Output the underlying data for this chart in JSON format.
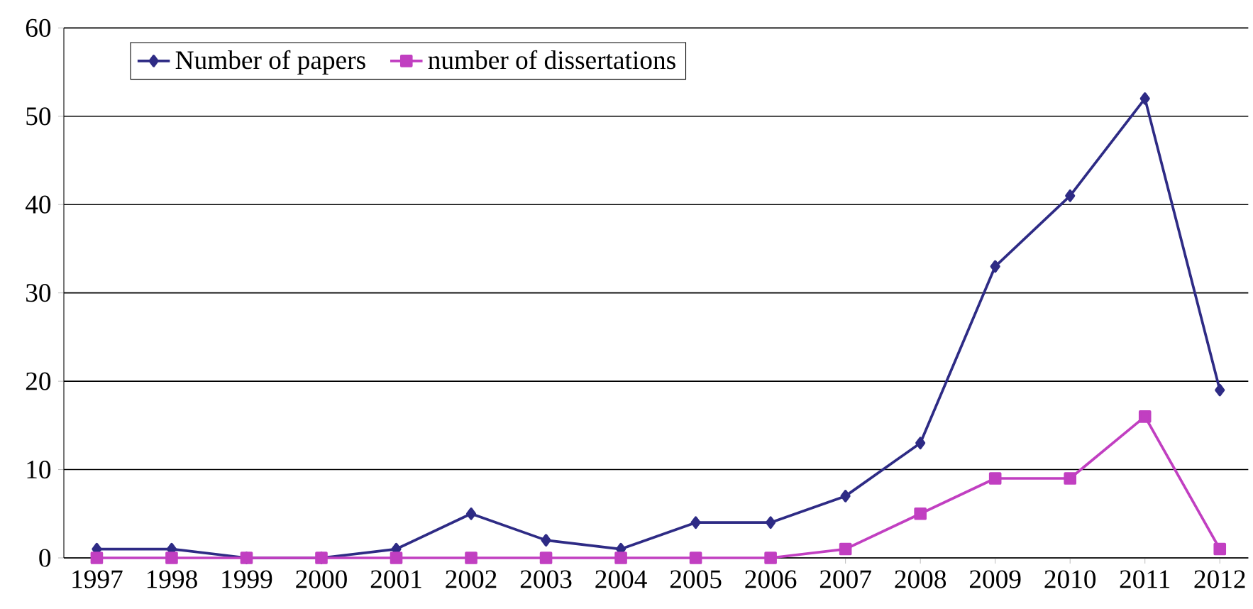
{
  "chart_data": {
    "type": "line",
    "categories": [
      "1997",
      "1998",
      "1999",
      "2000",
      "2001",
      "2002",
      "2003",
      "2004",
      "2005",
      "2006",
      "2007",
      "2008",
      "2009",
      "2010",
      "2011",
      "2012"
    ],
    "series": [
      {
        "name": "Number of papers",
        "color": "#2e2b85",
        "marker": "diamond",
        "values": [
          1,
          1,
          0,
          0,
          1,
          5,
          2,
          1,
          4,
          4,
          7,
          13,
          33,
          41,
          52,
          19
        ]
      },
      {
        "name": "number of dissertations",
        "color": "#c13fc1",
        "marker": "square",
        "values": [
          0,
          0,
          0,
          0,
          0,
          0,
          0,
          0,
          0,
          0,
          1,
          5,
          9,
          9,
          16,
          1
        ]
      }
    ],
    "ylim": [
      0,
      60
    ],
    "yticks": [
      0,
      10,
      20,
      30,
      40,
      50,
      60
    ],
    "grid": "y",
    "legend": "top left",
    "line_style": "solid"
  }
}
